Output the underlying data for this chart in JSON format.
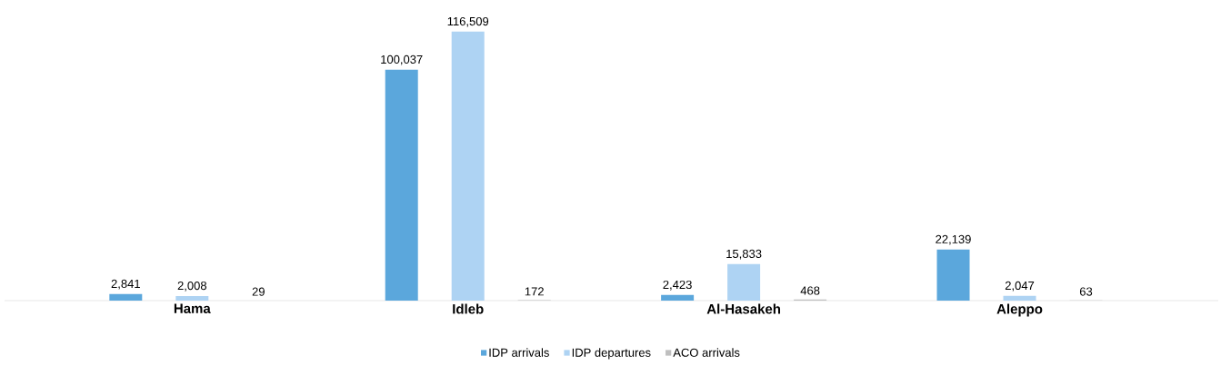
{
  "chart_data": {
    "type": "bar",
    "categories": [
      "Hama",
      "Idleb",
      "Al-Hasakeh",
      "Aleppo"
    ],
    "series": [
      {
        "name": "IDP arrivals",
        "color": "#5ba7dc",
        "values": [
          2841,
          100037,
          2423,
          22139
        ],
        "value_labels": [
          "2,841",
          "100,037",
          "2,423",
          "22,139"
        ]
      },
      {
        "name": "IDP departures",
        "color": "#aed3f3",
        "values": [
          2008,
          116509,
          15833,
          2047
        ],
        "value_labels": [
          "2,008",
          "116,509",
          "15,833",
          "2,047"
        ]
      },
      {
        "name": "ACO arrivals",
        "color": "#bfbfbf",
        "values": [
          29,
          172,
          468,
          63
        ],
        "value_labels": [
          "29",
          "172",
          "468",
          "63"
        ]
      }
    ],
    "legend": "bottom"
  }
}
